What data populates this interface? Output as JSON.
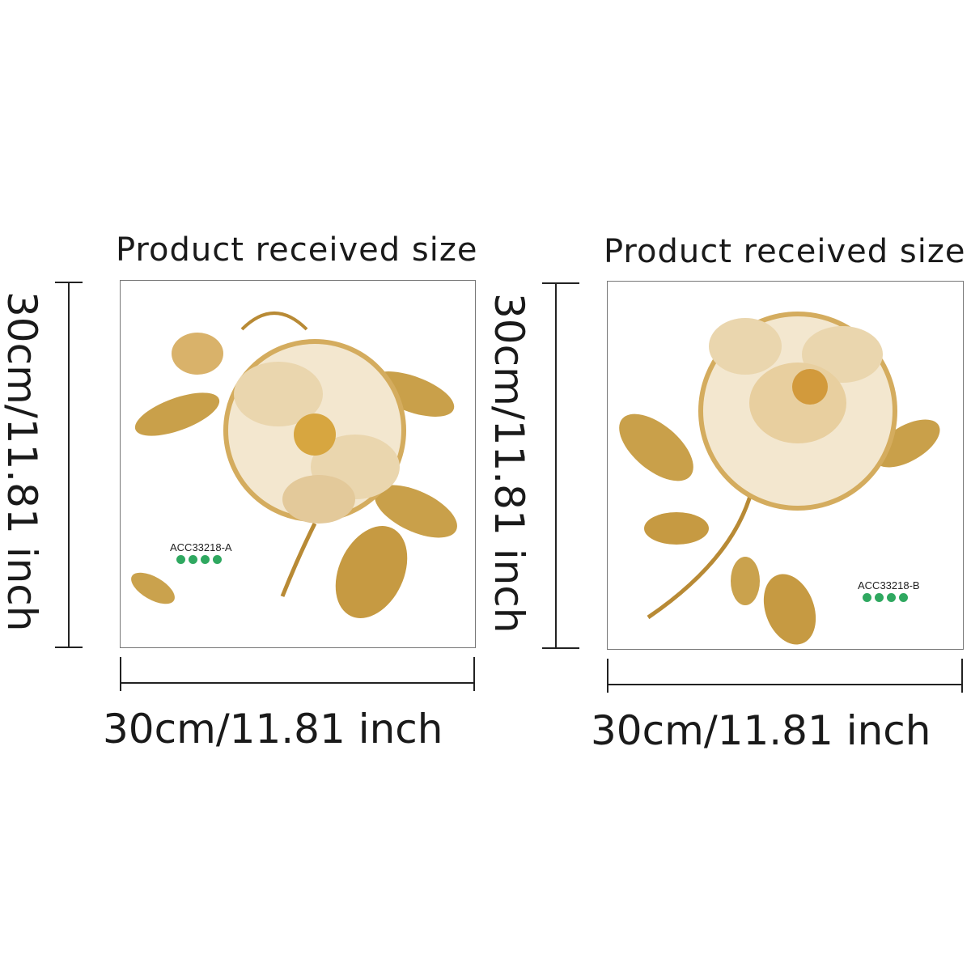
{
  "panels": [
    {
      "title": "Product received size",
      "width_label": "30cm/11.81 inch",
      "height_label": "30cm/11.81 inch",
      "code": "ACC33218-A"
    },
    {
      "title": "Product received size",
      "width_label": "30cm/11.81 inch",
      "height_label": "30cm/11.81 inch",
      "code": "ACC33218-B"
    }
  ],
  "colors": {
    "gold": "#c9a04a",
    "cream": "#f3e7cf",
    "badge": "#2fa860"
  }
}
